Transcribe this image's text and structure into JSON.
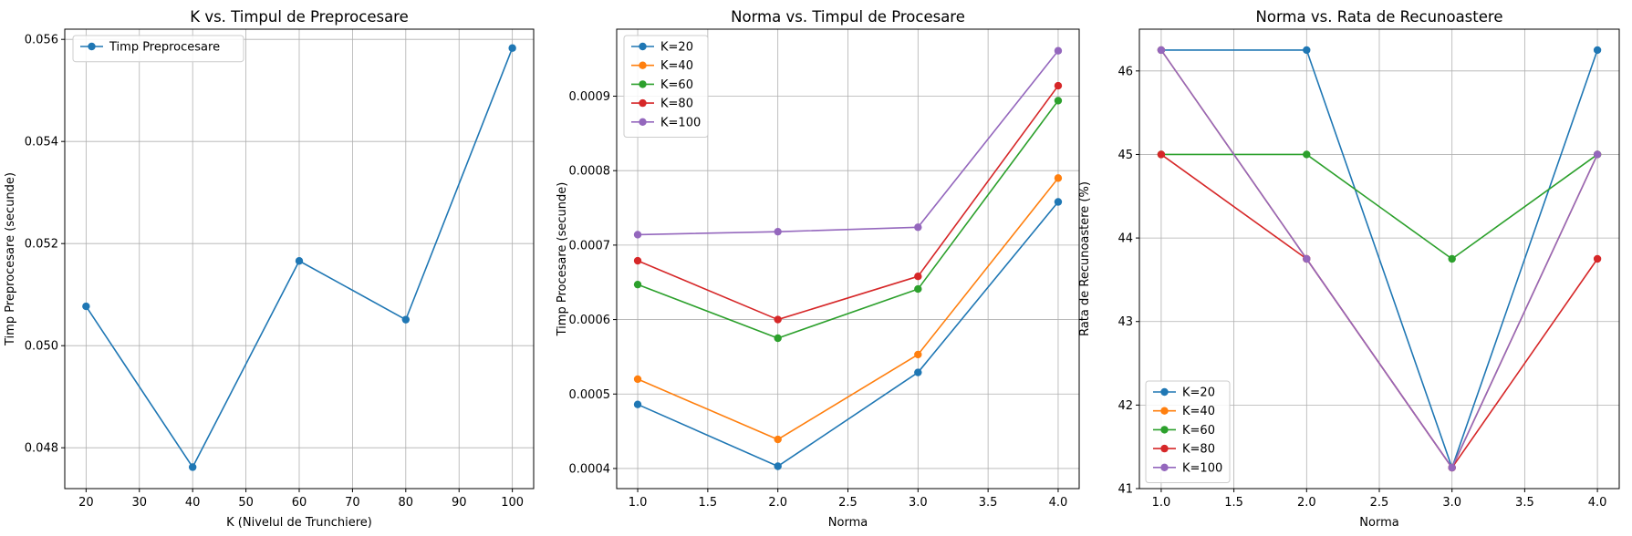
{
  "chart_data": [
    {
      "type": "line",
      "title": "K vs. Timpul de Preprocesare",
      "xlabel": "K (Nivelul de Trunchiere)",
      "ylabel": "Timp Preprocesare (secunde)",
      "xlim": [
        16,
        104
      ],
      "ylim": [
        0.0472,
        0.0562
      ],
      "xticks": [
        20,
        30,
        40,
        50,
        60,
        70,
        80,
        90,
        100
      ],
      "xtick_labels": [
        "20",
        "30",
        "40",
        "50",
        "60",
        "70",
        "80",
        "90",
        "100"
      ],
      "yticks": [
        0.048,
        0.05,
        0.052,
        0.054,
        0.056
      ],
      "ytick_labels": [
        "0.048",
        "0.050",
        "0.052",
        "0.054",
        "0.056"
      ],
      "grid": true,
      "legend_position": "upper left",
      "series": [
        {
          "name": "Timp Preprocesare",
          "color": "#1f77b4",
          "x": [
            20,
            40,
            60,
            80,
            100
          ],
          "values": [
            0.05077,
            0.04762,
            0.05166,
            0.05051,
            0.05583
          ]
        }
      ]
    },
    {
      "type": "line",
      "title": "Norma vs. Timpul de Procesare",
      "xlabel": "Norma",
      "ylabel": "Timp Procesare (secunde)",
      "xlim": [
        0.85,
        4.15
      ],
      "ylim": [
        0.000373,
        0.00099
      ],
      "xticks": [
        1.0,
        1.5,
        2.0,
        2.5,
        3.0,
        3.5,
        4.0
      ],
      "xtick_labels": [
        "1.0",
        "1.5",
        "2.0",
        "2.5",
        "3.0",
        "3.5",
        "4.0"
      ],
      "yticks": [
        0.0004,
        0.0005,
        0.0006,
        0.0007,
        0.0008,
        0.0009
      ],
      "ytick_labels": [
        "0.0004",
        "0.0005",
        "0.0006",
        "0.0007",
        "0.0008",
        "0.0009"
      ],
      "grid": true,
      "legend_position": "upper left",
      "series": [
        {
          "name": "K=20",
          "color": "#1f77b4",
          "x": [
            1,
            2,
            3,
            4
          ],
          "values": [
            0.000486,
            0.000403,
            0.000529,
            0.000758
          ]
        },
        {
          "name": "K=40",
          "color": "#ff7f0e",
          "x": [
            1,
            2,
            3,
            4
          ],
          "values": [
            0.00052,
            0.000439,
            0.000553,
            0.00079
          ]
        },
        {
          "name": "K=60",
          "color": "#2ca02c",
          "x": [
            1,
            2,
            3,
            4
          ],
          "values": [
            0.000647,
            0.000575,
            0.000641,
            0.000894
          ]
        },
        {
          "name": "K=80",
          "color": "#d62728",
          "x": [
            1,
            2,
            3,
            4
          ],
          "values": [
            0.000679,
            0.0006,
            0.000658,
            0.000914
          ]
        },
        {
          "name": "K=100",
          "color": "#9467bd",
          "x": [
            1,
            2,
            3,
            4
          ],
          "values": [
            0.000714,
            0.000718,
            0.000724,
            0.000961
          ]
        }
      ]
    },
    {
      "type": "line",
      "title": "Norma vs. Rata de Recunoastere",
      "xlabel": "Norma",
      "ylabel": "Rata de Recunoastere (%)",
      "xlim": [
        0.85,
        4.15
      ],
      "ylim": [
        41.0,
        46.5
      ],
      "xticks": [
        1.0,
        1.5,
        2.0,
        2.5,
        3.0,
        3.5,
        4.0
      ],
      "xtick_labels": [
        "1.0",
        "1.5",
        "2.0",
        "2.5",
        "3.0",
        "3.5",
        "4.0"
      ],
      "yticks": [
        41,
        42,
        43,
        44,
        45,
        46
      ],
      "ytick_labels": [
        "41",
        "42",
        "43",
        "44",
        "45",
        "46"
      ],
      "grid": true,
      "legend_position": "lower left",
      "series": [
        {
          "name": "K=20",
          "color": "#1f77b4",
          "x": [
            1,
            2,
            3,
            4
          ],
          "values": [
            46.25,
            46.25,
            41.25,
            46.25
          ]
        },
        {
          "name": "K=40",
          "color": "#ff7f0e",
          "x": [
            1,
            2,
            3,
            4
          ],
          "values": [
            46.25,
            43.75,
            41.25,
            45.0
          ]
        },
        {
          "name": "K=60",
          "color": "#2ca02c",
          "x": [
            1,
            2,
            3,
            4
          ],
          "values": [
            45.0,
            45.0,
            43.75,
            45.0
          ]
        },
        {
          "name": "K=80",
          "color": "#d62728",
          "x": [
            1,
            2,
            3,
            4
          ],
          "values": [
            45.0,
            43.75,
            41.25,
            43.75
          ]
        },
        {
          "name": "K=100",
          "color": "#9467bd",
          "x": [
            1,
            2,
            3,
            4
          ],
          "values": [
            46.25,
            43.75,
            41.25,
            45.0
          ]
        }
      ]
    }
  ]
}
